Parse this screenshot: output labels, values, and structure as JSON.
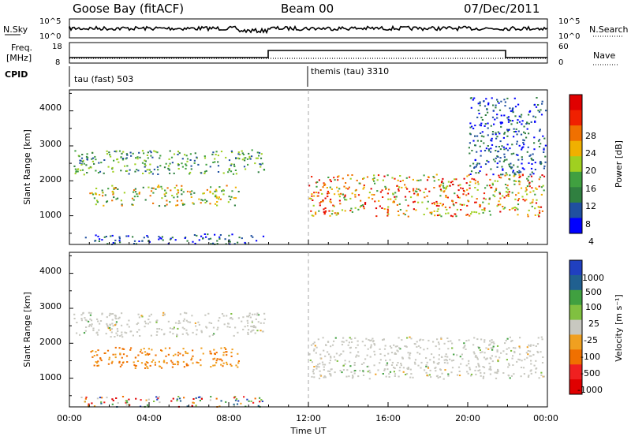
{
  "header": {
    "station": "Goose Bay (fitACF)",
    "beam": "Beam 00",
    "date": "07/Dec/2011"
  },
  "noise_panel": {
    "left_label": "N.Sky",
    "right_label": "N.Search",
    "left_ticks": [
      "10^5",
      "10^0"
    ],
    "right_ticks": [
      "10^5",
      "10^0"
    ]
  },
  "freq_panel": {
    "left_label_1": "Freq.",
    "left_label_2": "[MHz]",
    "right_label": "Nave",
    "left_ticks": [
      "18",
      "8"
    ],
    "right_ticks": [
      "60",
      "0"
    ]
  },
  "cpid_panel": {
    "label": "CPID",
    "modes": [
      {
        "name": "tau (fast) 503",
        "start_hour": 0
      },
      {
        "name": "themis (tau) 3310",
        "start_hour": 12
      }
    ]
  },
  "power_panel": {
    "ylabel": "Slant Range [km]",
    "yticks": [
      "4000",
      "3000",
      "2000",
      "1000"
    ],
    "colorbar_label": "Power [dB]",
    "colorbar_ticks": [
      "28",
      "24",
      "20",
      "16",
      "12",
      "8",
      "4"
    ]
  },
  "velocity_panel": {
    "ylabel": "Slant Range [km]",
    "yticks": [
      "4000",
      "3000",
      "2000",
      "1000"
    ],
    "colorbar_label": "Velocity [m s⁻¹]",
    "colorbar_ticks": [
      "1000",
      "500",
      "100",
      "25",
      "-25",
      "-100",
      "-500",
      "-1000"
    ]
  },
  "time_axis": {
    "label": "Time UT",
    "ticks": [
      "00:00",
      "04:00",
      "08:00",
      "12:00",
      "16:00",
      "20:00",
      "00:00"
    ]
  },
  "colors": {
    "power_scale": [
      "#0000ff",
      "#2050a0",
      "#308040",
      "#40a040",
      "#a0d020",
      "#f0b000",
      "#f07000",
      "#f02000",
      "#e00000"
    ],
    "velocity_scale": [
      "#2040c0",
      "#206090",
      "#40a040",
      "#80c040",
      "#c8c8c0",
      "#f0a020",
      "#f07000",
      "#f02020",
      "#e00000"
    ]
  },
  "chart_data": [
    {
      "type": "heatmap",
      "title": "Power",
      "xlabel": "Time UT",
      "ylabel": "Slant Range [km]",
      "xlim_hours": [
        0,
        24
      ],
      "ylim_km": [
        180,
        4600
      ],
      "colorbar": {
        "label": "Power [dB]",
        "range": [
          0,
          30
        ]
      },
      "scatter_regions": [
        {
          "t": [
            0.2,
            9.8
          ],
          "r": [
            2200,
            2900
          ],
          "level": "low-mid"
        },
        {
          "t": [
            1.0,
            8.5
          ],
          "r": [
            1300,
            1900
          ],
          "level": "mid"
        },
        {
          "t": [
            12.0,
            23.8
          ],
          "r": [
            1000,
            2200
          ],
          "level": "high"
        },
        {
          "t": [
            0.5,
            9.7
          ],
          "r": [
            200,
            500
          ],
          "level": "low"
        },
        {
          "t": [
            20.0,
            23.9
          ],
          "r": [
            2200,
            4400
          ],
          "level": "low"
        }
      ]
    },
    {
      "type": "heatmap",
      "title": "Velocity",
      "xlabel": "Time UT",
      "ylabel": "Slant Range [km]",
      "xlim_hours": [
        0,
        24
      ],
      "ylim_km": [
        180,
        4600
      ],
      "colorbar": {
        "label": "Velocity [m s-1]",
        "levels": [
          1000,
          500,
          100,
          25,
          -25,
          -100,
          -500,
          -1000
        ]
      },
      "scatter_regions": [
        {
          "t": [
            0.2,
            9.8
          ],
          "r": [
            2200,
            2900
          ],
          "level": "near-zero"
        },
        {
          "t": [
            1.0,
            8.5
          ],
          "r": [
            1300,
            1900
          ],
          "level": "negative"
        },
        {
          "t": [
            12.0,
            23.8
          ],
          "r": [
            1000,
            2200
          ],
          "level": "near-zero"
        },
        {
          "t": [
            0.5,
            9.7
          ],
          "r": [
            200,
            500
          ],
          "level": "mixed"
        }
      ]
    }
  ]
}
